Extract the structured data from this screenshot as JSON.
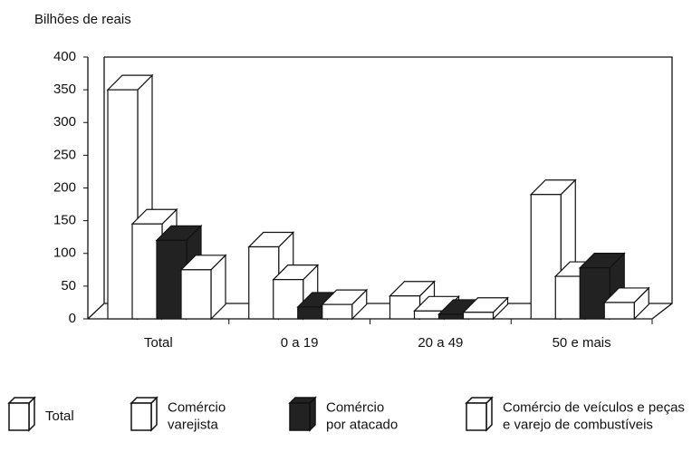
{
  "chart_data": {
    "type": "bar3d",
    "y_label": "Bilhões de reais",
    "categories": [
      "Total",
      "0 a 19",
      "20 a 49",
      "50 e mais"
    ],
    "series": [
      {
        "name": "Total",
        "color": "#ffffff",
        "values": [
          350,
          110,
          35,
          190
        ]
      },
      {
        "name": "Comércio varejista",
        "color": "#ffffff",
        "values": [
          145,
          60,
          12,
          65
        ]
      },
      {
        "name": "Comércio por atacado",
        "color": "#222222",
        "values": [
          120,
          18,
          7,
          78
        ]
      },
      {
        "name": "Comércio de veículos e peças e varejo de combustíveis",
        "color": "#ffffff",
        "values": [
          75,
          22,
          10,
          25
        ]
      }
    ],
    "ylim": [
      0,
      400
    ],
    "yticks": [
      0,
      50,
      100,
      150,
      200,
      250,
      300,
      350,
      400
    ]
  }
}
